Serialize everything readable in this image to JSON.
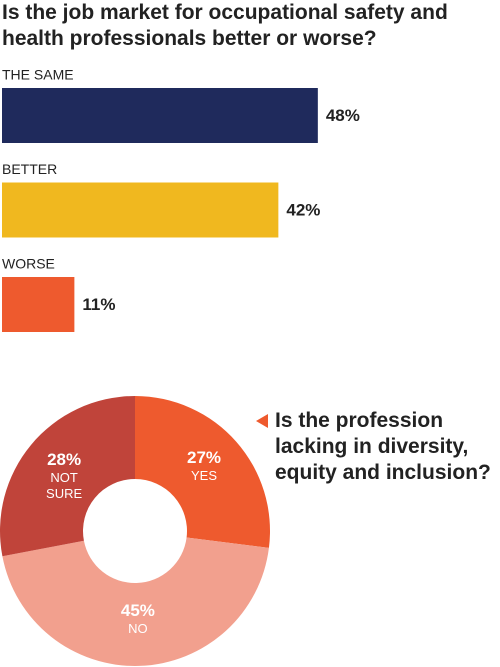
{
  "chart_data": [
    {
      "type": "bar",
      "title": "Is the job market for occupational safety and health professionals better or worse?",
      "categories": [
        "THE SAME",
        "BETTER",
        "WORSE"
      ],
      "values": [
        48,
        42,
        11
      ],
      "value_labels": [
        "48%",
        "42%",
        "11%"
      ],
      "colors": [
        "#1f2a5c",
        "#f0b81f",
        "#ee5a2e"
      ]
    },
    {
      "type": "donut",
      "title": "Is the profession lacking in diversity, equity and inclusion?",
      "categories": [
        "YES",
        "NO",
        "NOT SURE"
      ],
      "values": [
        27,
        45,
        28
      ],
      "value_labels": [
        "27%",
        "45%",
        "28%"
      ],
      "colors": [
        "#ee5a2e",
        "#f2a08e",
        "#c0443a"
      ]
    }
  ]
}
